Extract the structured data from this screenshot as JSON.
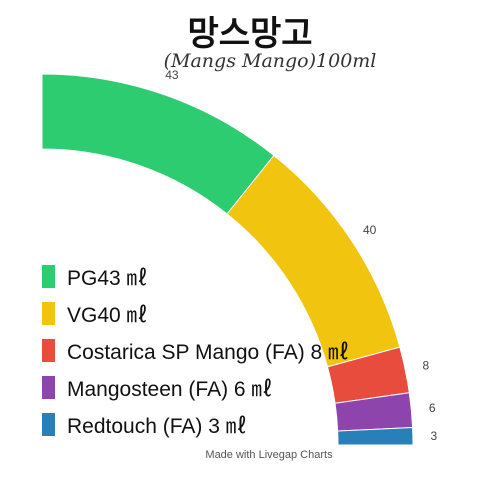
{
  "chart_data": {
    "type": "pie",
    "title": "망스망고",
    "subtitle": "(Mangs Mango)100ml",
    "credit": "Made with Livegap Charts",
    "legend_position": "left",
    "slices": [
      {
        "label": "PG43 ㎖",
        "value": 43,
        "data_label": "43",
        "color": "#2ecc71"
      },
      {
        "label": "VG40 ㎖",
        "value": 40,
        "data_label": "40",
        "color": "#f1c40f"
      },
      {
        "label": "Costarica SP Mango (FA) 8 ㎖",
        "value": 8,
        "data_label": "8",
        "color": "#e74c3c"
      },
      {
        "label": "Mangosteen (FA) 6 ㎖",
        "value": 6,
        "data_label": "6",
        "color": "#8e44ad"
      },
      {
        "label": "Redtouch (FA) 3 ㎖",
        "value": 3,
        "data_label": "3",
        "color": "#2980b9"
      }
    ]
  }
}
